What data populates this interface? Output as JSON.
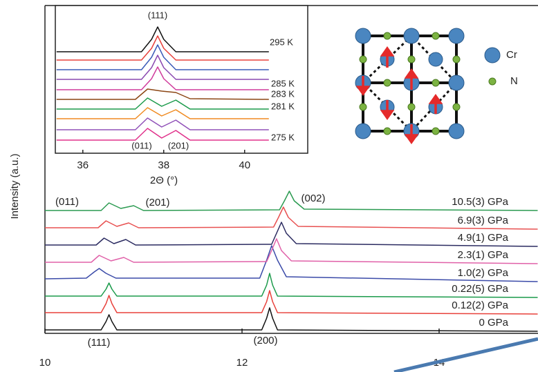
{
  "chart_data": [
    {
      "type": "line",
      "y_label": "Intensity (a.u.)",
      "xlim": [
        10,
        15
      ],
      "ylim": [
        0,
        475
      ],
      "xticks": [
        10,
        12,
        14
      ],
      "annotations": [
        "(011)",
        "(201)",
        "(002)",
        "(111)",
        "(200)"
      ],
      "series": [
        {
          "name": "0 GPa",
          "color": "#111111",
          "x": [
            10,
            10.57,
            10.62,
            10.65,
            10.68,
            10.73,
            12.2,
            12.25,
            12.28,
            12.31,
            12.36,
            15
          ],
          "values": [
            5,
            5,
            17,
            27,
            17,
            5,
            5,
            22,
            37,
            22,
            5,
            3
          ]
        },
        {
          "name": "0.12(2) GPa",
          "color": "#e8403a",
          "x": [
            10,
            10.57,
            10.62,
            10.65,
            10.68,
            10.73,
            12.2,
            12.25,
            12.28,
            12.31,
            12.36,
            15
          ],
          "values": [
            30,
            30,
            43,
            55,
            43,
            30,
            30,
            46,
            62,
            46,
            30,
            28
          ]
        },
        {
          "name": "0.22(5) GPa",
          "color": "#1a9a4a",
          "x": [
            10,
            10.57,
            10.62,
            10.65,
            10.68,
            10.73,
            12.2,
            12.25,
            12.28,
            12.31,
            12.36,
            15
          ],
          "values": [
            54,
            54,
            64,
            73,
            64,
            54,
            54,
            70,
            87,
            70,
            54,
            52
          ]
        },
        {
          "name": "1.0(2) GPa",
          "color": "#3a4aa8",
          "x": [
            10,
            10.42,
            10.5,
            10.55,
            10.62,
            10.72,
            12.18,
            12.25,
            12.3,
            12.36,
            12.45,
            15
          ],
          "values": [
            79,
            80,
            89,
            94,
            87,
            80,
            80,
            106,
            127,
            106,
            82,
            75
          ]
        },
        {
          "name": "2.3(1) GPa",
          "color": "#e060a8",
          "x": [
            10,
            10.47,
            10.55,
            10.67,
            10.8,
            10.9,
            12.25,
            12.3,
            12.35,
            12.4,
            12.5,
            15
          ],
          "values": [
            103,
            103,
            113,
            105,
            110,
            103,
            104,
            120,
            137,
            120,
            105,
            101
          ]
        },
        {
          "name": "4.9(1) GPa",
          "color": "#2a2a60",
          "x": [
            10,
            10.52,
            10.6,
            10.7,
            10.82,
            10.92,
            12.3,
            12.35,
            12.4,
            12.45,
            12.55,
            15
          ],
          "values": [
            128,
            128,
            138,
            130,
            136,
            128,
            129,
            145,
            161,
            145,
            130,
            126
          ]
        },
        {
          "name": "6.9(3) GPa",
          "color": "#e85050",
          "x": [
            10,
            10.54,
            10.62,
            10.73,
            10.85,
            10.95,
            12.32,
            12.37,
            12.42,
            12.47,
            12.57,
            15
          ],
          "values": [
            153,
            153,
            163,
            155,
            160,
            153,
            154,
            168,
            183,
            168,
            155,
            151
          ]
        },
        {
          "name": "10.5(3) GPa",
          "color": "#2a9a50",
          "x": [
            10,
            10.57,
            10.65,
            10.77,
            10.9,
            11.0,
            12.38,
            12.43,
            12.48,
            12.53,
            12.63,
            15
          ],
          "values": [
            178,
            178,
            189,
            181,
            185,
            178,
            179,
            192,
            206,
            192,
            180,
            178
          ]
        }
      ]
    },
    {
      "type": "line",
      "x_label": "2Θ (°)",
      "xlim": [
        35.32,
        41.56
      ],
      "ylim": [
        0,
        214
      ],
      "xticks": [
        36,
        38,
        40
      ],
      "annotations": [
        "(111)",
        "(011)",
        "(201)",
        "295 K",
        "285 K",
        "283 K",
        "281 K",
        "275 K"
      ],
      "series": [
        {
          "color": "#111111",
          "x": [
            35.35,
            37.45,
            37.7,
            37.85,
            38.0,
            38.3,
            40.6
          ],
          "values": [
            147,
            147,
            165,
            183,
            165,
            147,
            147
          ]
        },
        {
          "color": "#e8403a",
          "x": [
            35.35,
            37.45,
            37.7,
            37.85,
            38.0,
            38.3,
            40.6
          ],
          "values": [
            135,
            135,
            152,
            170,
            152,
            135,
            135
          ]
        },
        {
          "color": "#3a5ab8",
          "x": [
            35.35,
            37.45,
            37.7,
            37.85,
            38.0,
            38.3,
            40.6
          ],
          "values": [
            121,
            121,
            139,
            157,
            139,
            121,
            121
          ]
        },
        {
          "color": "#8a48b0",
          "x": [
            35.35,
            37.45,
            37.7,
            37.85,
            38.0,
            38.3,
            40.6
          ],
          "values": [
            107,
            107,
            124,
            142,
            124,
            107,
            107
          ]
        },
        {
          "color": "#d03c9c",
          "x": [
            35.35,
            37.45,
            37.7,
            37.85,
            38.0,
            38.3,
            40.6
          ],
          "values": [
            92,
            92,
            108,
            125,
            108,
            92,
            92
          ]
        },
        {
          "color": "#8b4513",
          "x": [
            35.35,
            37.3,
            37.6,
            37.95,
            38.3,
            38.65,
            40.6
          ],
          "values": [
            78,
            78,
            93,
            90,
            88,
            79,
            78
          ]
        },
        {
          "color": "#1a9a4a",
          "x": [
            35.35,
            37.3,
            37.6,
            37.95,
            38.3,
            38.65,
            40.6
          ],
          "values": [
            64,
            64,
            80,
            68,
            77,
            64,
            64
          ]
        },
        {
          "color": "#f08a20",
          "x": [
            35.35,
            37.3,
            37.6,
            37.95,
            38.3,
            38.65,
            40.6
          ],
          "values": [
            50,
            50,
            66,
            54,
            63,
            50,
            50
          ]
        },
        {
          "color": "#9050b8",
          "x": [
            35.35,
            37.3,
            37.6,
            37.95,
            38.3,
            38.65,
            40.6
          ],
          "values": [
            34,
            34,
            51,
            38,
            48,
            34,
            34
          ]
        },
        {
          "color": "#e0308a",
          "x": [
            35.35,
            37.3,
            37.6,
            37.95,
            38.3,
            38.65,
            40.6
          ],
          "values": [
            19,
            19,
            36,
            22,
            33,
            19,
            19
          ]
        }
      ]
    }
  ],
  "diagram": {
    "legend": [
      "Cr",
      "N"
    ]
  }
}
